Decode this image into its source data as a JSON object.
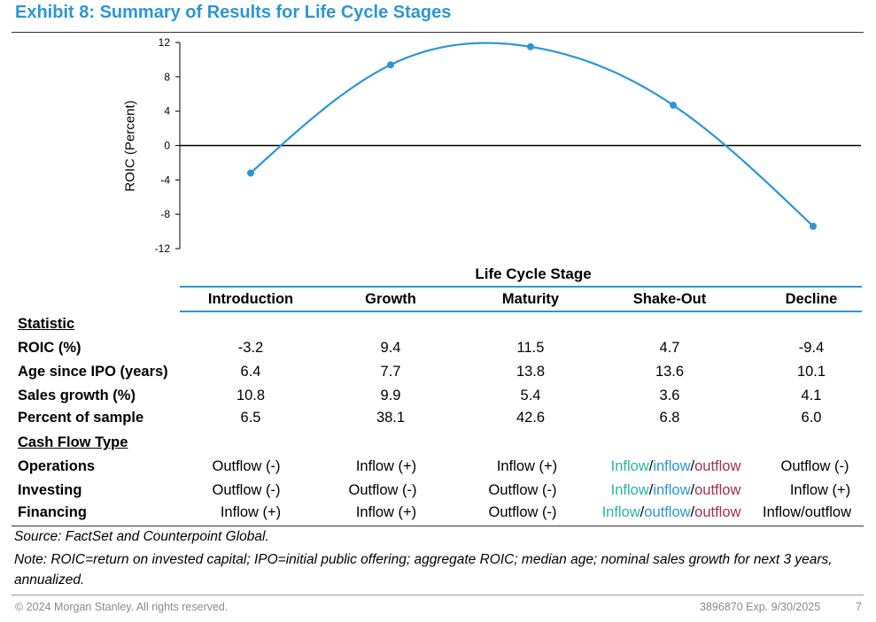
{
  "title": "Exhibit 8: Summary of Results for Life Cycle Stages",
  "chart_data": {
    "type": "line",
    "categories": [
      "Introduction",
      "Growth",
      "Maturity",
      "Shake-Out",
      "Decline"
    ],
    "values": [
      -3.2,
      9.4,
      11.5,
      4.7,
      -9.4
    ],
    "ylabel": "ROIC (Percent)",
    "xlabel": "Life Cycle Stage",
    "ylim": [
      -12,
      12
    ],
    "yticks": [
      12,
      8,
      4,
      0,
      -4,
      -8,
      -12
    ],
    "smooth": true,
    "series_color": "#2e95d3",
    "zero_line": true
  },
  "table": {
    "columns": [
      "Introduction",
      "Growth",
      "Maturity",
      "Shake-Out",
      "Decline"
    ],
    "statistic_header": "Statistic",
    "statistic_rows": [
      {
        "label": "ROIC (%)",
        "values": [
          "-3.2",
          "9.4",
          "11.5",
          "4.7",
          "-9.4"
        ]
      },
      {
        "label": "Age since IPO (years)",
        "values": [
          "6.4",
          "7.7",
          "13.8",
          "13.6",
          "10.1"
        ]
      },
      {
        "label": "Sales growth (%)",
        "values": [
          "10.8",
          "9.9",
          "5.4",
          "3.6",
          "4.1"
        ]
      },
      {
        "label": "Percent of sample",
        "values": [
          "6.5",
          "38.1",
          "42.6",
          "6.8",
          "6.0"
        ]
      }
    ],
    "cashflow_header": "Cash Flow Type",
    "cashflow_rows": [
      {
        "label": "Operations",
        "values": [
          "Outflow (-)",
          "Inflow (+)",
          "Inflow (+)",
          "",
          "Outflow (-)"
        ]
      },
      {
        "label": "Investing",
        "values": [
          "Outflow (-)",
          "Outflow (-)",
          "Outflow (-)",
          "",
          "Inflow (+)"
        ]
      },
      {
        "label": "Financing",
        "values": [
          "Inflow (+)",
          "Inflow (+)",
          "Outflow (-)",
          "",
          "Inflow/outflow"
        ]
      }
    ],
    "shakeout_cashflow": {
      "operations": {
        "a": "Inflow",
        "s1": "/",
        "b": "inflow",
        "s2": "/",
        "c": "outflow"
      },
      "investing": {
        "a": "Inflow",
        "s1": "/",
        "b": "inflow",
        "s2": "/",
        "c": "outflow"
      },
      "financing": {
        "a": "Inflow",
        "s1": "/",
        "b": "outflow",
        "s2": "/",
        "c": "outflow"
      }
    },
    "colors": {
      "teal": "#2bb3a0",
      "blue": "#2e95d3",
      "maroon": "#9b3250"
    }
  },
  "source": "Source: FactSet and Counterpoint Global.",
  "note": "Note: ROIC=return on invested capital; IPO=initial public offering; aggregate ROIC; median age; nominal sales growth for next 3 years, annualized.",
  "footer": {
    "copyright": "© 2024 Morgan Stanley. All rights reserved.",
    "code": "3896870 Exp. 9/30/2025",
    "page": "7"
  }
}
